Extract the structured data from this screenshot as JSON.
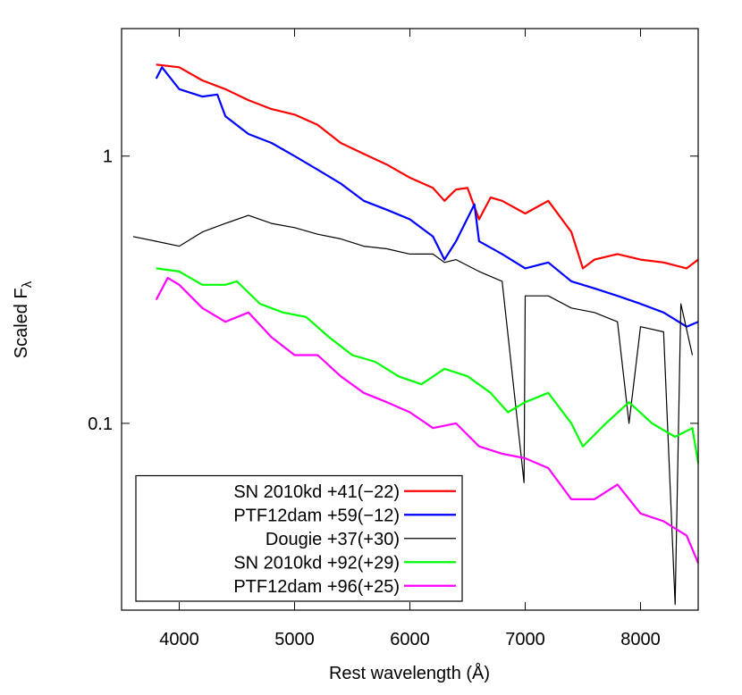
{
  "chart_data": {
    "type": "line",
    "x_label": "Rest wavelength (Å)",
    "y_label": "Scaled F",
    "y_label_subscript": "λ",
    "xlim": [
      3500,
      8500
    ],
    "xticks": [
      4000,
      5000,
      6000,
      7000,
      8000
    ],
    "ylim": [
      0.02,
      3
    ],
    "yticks": [
      0.1,
      1
    ],
    "log_y": true,
    "grid": false,
    "legend": "lower left",
    "series": [
      {
        "name": "SN 2010kd +41(−22)",
        "color": "#ff0000",
        "x": [
          3800,
          4000,
          4200,
          4400,
          4600,
          4800,
          5000,
          5200,
          5400,
          5600,
          5800,
          6000,
          6200,
          6300,
          6400,
          6500,
          6600,
          6700,
          6800,
          7000,
          7200,
          7400,
          7500,
          7600,
          7800,
          8000,
          8200,
          8400,
          8500
        ],
        "values": [
          2.2,
          2.15,
          1.92,
          1.78,
          1.62,
          1.5,
          1.43,
          1.31,
          1.12,
          1.02,
          0.93,
          0.83,
          0.76,
          0.68,
          0.75,
          0.76,
          0.58,
          0.7,
          0.68,
          0.61,
          0.68,
          0.52,
          0.38,
          0.41,
          0.43,
          0.41,
          0.4,
          0.38,
          0.41
        ]
      },
      {
        "name": "PTF12dam +59(−12)",
        "color": "#0000ff",
        "x": [
          3800,
          3850,
          4000,
          4200,
          4330,
          4400,
          4600,
          4800,
          5000,
          5200,
          5400,
          5600,
          5800,
          6000,
          6200,
          6300,
          6400,
          6560,
          6600,
          6800,
          7000,
          7200,
          7400,
          7600,
          7800,
          8000,
          8200,
          8400,
          8500
        ],
        "values": [
          1.95,
          2.15,
          1.78,
          1.67,
          1.7,
          1.41,
          1.21,
          1.12,
          1.0,
          0.89,
          0.79,
          0.68,
          0.63,
          0.58,
          0.5,
          0.41,
          0.48,
          0.66,
          0.48,
          0.43,
          0.38,
          0.4,
          0.34,
          0.32,
          0.3,
          0.28,
          0.26,
          0.23,
          0.24
        ]
      },
      {
        "name": "Dougie +37(+30)",
        "color": "#000000",
        "x": [
          3600,
          3800,
          4000,
          4200,
          4400,
          4600,
          4800,
          5000,
          5200,
          5400,
          5600,
          5800,
          6000,
          6200,
          6300,
          6400,
          6600,
          6800,
          6990,
          7000,
          7200,
          7400,
          7600,
          7800,
          7900,
          8000,
          8200,
          8300,
          8350,
          8450
        ],
        "values": [
          0.5,
          0.48,
          0.46,
          0.52,
          0.56,
          0.6,
          0.56,
          0.54,
          0.51,
          0.49,
          0.46,
          0.45,
          0.43,
          0.43,
          0.4,
          0.41,
          0.37,
          0.34,
          0.06,
          0.3,
          0.3,
          0.27,
          0.26,
          0.24,
          0.1,
          0.23,
          0.22,
          0.021,
          0.28,
          0.18
        ]
      },
      {
        "name": "SN 2010kd +92(+29)",
        "color": "#00ff00",
        "x": [
          3800,
          4000,
          4200,
          4400,
          4500,
          4700,
          4900,
          5100,
          5300,
          5500,
          5700,
          5900,
          6100,
          6300,
          6500,
          6700,
          6850,
          7000,
          7200,
          7400,
          7500,
          7700,
          7900,
          8100,
          8300,
          8450,
          8500
        ],
        "values": [
          0.38,
          0.37,
          0.33,
          0.33,
          0.34,
          0.28,
          0.26,
          0.25,
          0.21,
          0.18,
          0.17,
          0.15,
          0.14,
          0.16,
          0.15,
          0.13,
          0.11,
          0.12,
          0.13,
          0.1,
          0.082,
          0.1,
          0.12,
          0.1,
          0.089,
          0.096,
          0.071
        ]
      },
      {
        "name": "PTF12dam +96(+25)",
        "color": "#ff00ff",
        "x": [
          3800,
          3900,
          4000,
          4200,
          4400,
          4600,
          4800,
          5000,
          5200,
          5400,
          5600,
          5800,
          6000,
          6200,
          6400,
          6600,
          6800,
          7000,
          7200,
          7400,
          7600,
          7800,
          8000,
          8200,
          8400,
          8500
        ],
        "values": [
          0.29,
          0.35,
          0.33,
          0.27,
          0.24,
          0.26,
          0.21,
          0.18,
          0.18,
          0.15,
          0.13,
          0.12,
          0.11,
          0.096,
          0.1,
          0.082,
          0.077,
          0.074,
          0.068,
          0.052,
          0.052,
          0.059,
          0.046,
          0.043,
          0.038,
          0.03
        ]
      }
    ]
  }
}
